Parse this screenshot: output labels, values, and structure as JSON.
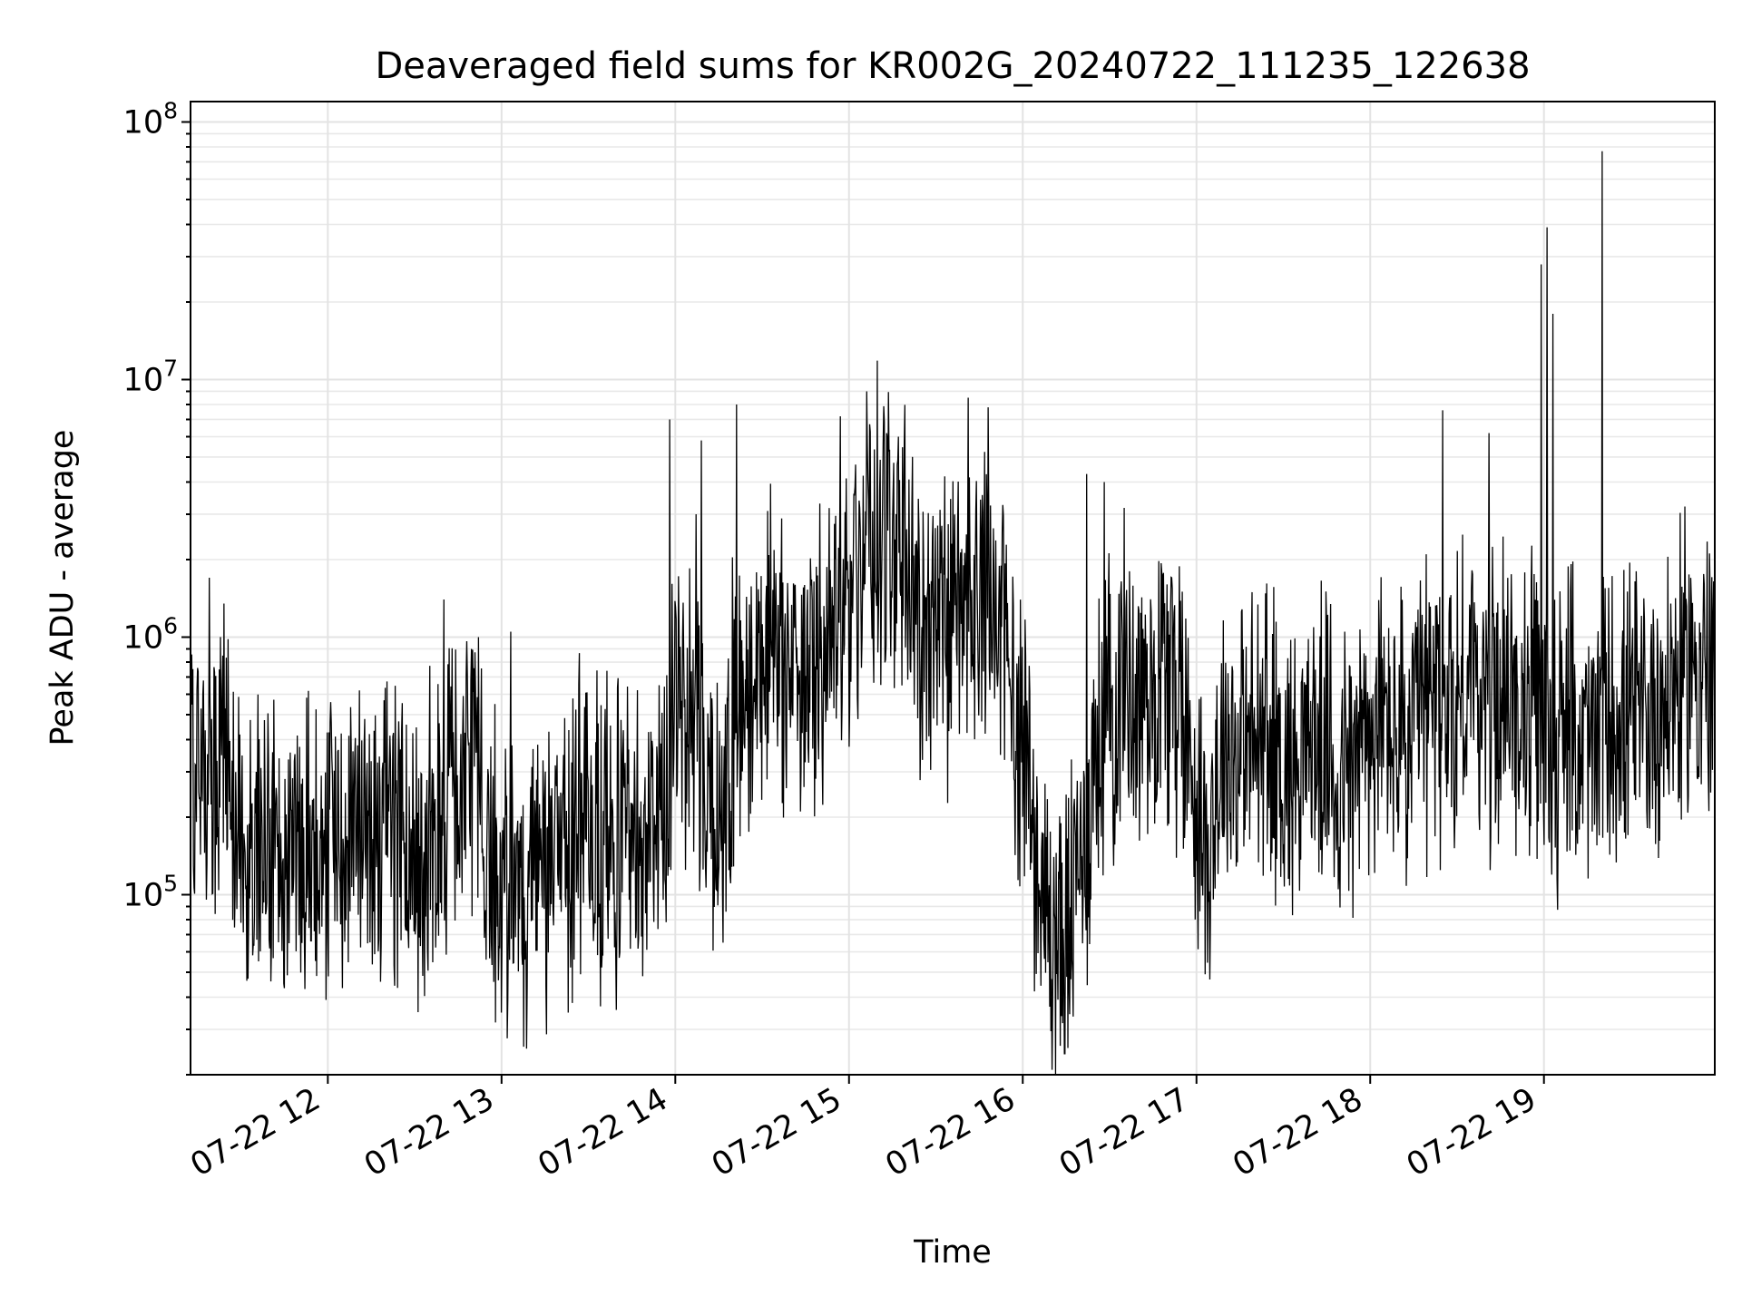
{
  "chart_data": {
    "type": "line",
    "title": "Deaveraged field sums for KR002G_20240722_111235_122638",
    "xlabel": "Time",
    "ylabel": "Peak ADU - average",
    "yscale": "log",
    "ylim": [
      20000,
      120000000
    ],
    "xlim": [
      "2024-07-22 11:12:35",
      "2024-07-22 19:59:00"
    ],
    "grid": "both major and minor",
    "line_color": "#000000",
    "x_ticks": [
      {
        "label": "07-22 12",
        "value": "2024-07-22 12:00"
      },
      {
        "label": "07-22 13",
        "value": "2024-07-22 13:00"
      },
      {
        "label": "07-22 14",
        "value": "2024-07-22 14:00"
      },
      {
        "label": "07-22 15",
        "value": "2024-07-22 15:00"
      },
      {
        "label": "07-22 16",
        "value": "2024-07-22 16:00"
      },
      {
        "label": "07-22 17",
        "value": "2024-07-22 17:00"
      },
      {
        "label": "07-22 18",
        "value": "2024-07-22 18:00"
      },
      {
        "label": "07-22 19",
        "value": "2024-07-22 19:00"
      }
    ],
    "y_ticks": [
      {
        "base": "10",
        "exp": "5",
        "value": 100000
      },
      {
        "base": "10",
        "exp": "6",
        "value": 1000000
      },
      {
        "base": "10",
        "exp": "7",
        "value": 10000000
      },
      {
        "base": "10",
        "exp": "8",
        "value": 100000000
      }
    ],
    "series": [
      {
        "x": [
          "2024-07-22 11:13",
          "2024-07-22 11:20",
          "2024-07-22 11:27",
          "2024-07-22 11:34",
          "2024-07-22 11:41",
          "2024-07-22 11:48",
          "2024-07-22 11:55",
          "2024-07-22 12:02",
          "2024-07-22 12:09",
          "2024-07-22 12:16",
          "2024-07-22 12:23",
          "2024-07-22 12:30",
          "2024-07-22 12:37",
          "2024-07-22 12:44",
          "2024-07-22 12:51",
          "2024-07-22 12:58",
          "2024-07-22 13:05",
          "2024-07-22 13:12",
          "2024-07-22 13:19",
          "2024-07-22 13:26",
          "2024-07-22 13:33",
          "2024-07-22 13:40",
          "2024-07-22 13:47",
          "2024-07-22 13:54",
          "2024-07-22 14:01",
          "2024-07-22 14:08",
          "2024-07-22 14:15",
          "2024-07-22 14:22",
          "2024-07-22 14:29",
          "2024-07-22 14:36",
          "2024-07-22 14:43",
          "2024-07-22 14:50",
          "2024-07-22 14:57",
          "2024-07-22 15:04",
          "2024-07-22 15:11",
          "2024-07-22 15:18",
          "2024-07-22 15:25",
          "2024-07-22 15:32",
          "2024-07-22 15:39",
          "2024-07-22 15:46",
          "2024-07-22 15:53",
          "2024-07-22 16:00",
          "2024-07-22 16:07",
          "2024-07-22 16:14",
          "2024-07-22 16:21",
          "2024-07-22 16:28",
          "2024-07-22 16:35",
          "2024-07-22 16:42",
          "2024-07-22 16:49",
          "2024-07-22 16:56",
          "2024-07-22 17:03",
          "2024-07-22 17:10",
          "2024-07-22 17:17",
          "2024-07-22 17:24",
          "2024-07-22 17:31",
          "2024-07-22 17:38",
          "2024-07-22 17:45",
          "2024-07-22 17:52",
          "2024-07-22 17:59",
          "2024-07-22 18:06",
          "2024-07-22 18:13",
          "2024-07-22 18:20",
          "2024-07-22 18:27",
          "2024-07-22 18:34",
          "2024-07-22 18:41",
          "2024-07-22 18:48",
          "2024-07-22 18:55",
          "2024-07-22 19:02",
          "2024-07-22 19:09",
          "2024-07-22 19:16",
          "2024-07-22 19:23",
          "2024-07-22 19:30",
          "2024-07-22 19:37",
          "2024-07-22 19:44",
          "2024-07-22 19:51",
          "2024-07-22 19:58"
        ],
        "y": [
          350000,
          300000,
          250000,
          200000,
          150000,
          160000,
          180000,
          170000,
          190000,
          170000,
          200000,
          150000,
          170000,
          240000,
          300000,
          120000,
          100000,
          110000,
          130000,
          180000,
          170000,
          160000,
          170000,
          180000,
          600000,
          500000,
          150000,
          700000,
          800000,
          900000,
          700000,
          800000,
          1000000,
          2000000,
          2500000,
          2000000,
          1200000,
          900000,
          1100000,
          1500000,
          1000000,
          400000,
          90000,
          60000,
          150000,
          500000,
          700000,
          600000,
          800000,
          500000,
          150000,
          400000,
          350000,
          450000,
          300000,
          400000,
          350000,
          300000,
          400000,
          450000,
          350000,
          550000,
          500000,
          700000,
          550000,
          600000,
          500000,
          400000,
          450000,
          350000,
          500000,
          450000,
          500000,
          600000,
          800000,
          700000
        ]
      }
    ],
    "spikes": [
      {
        "x": "2024-07-22 11:19",
        "y": 1700000
      },
      {
        "x": "2024-07-22 11:24",
        "y": 1350000
      },
      {
        "x": "2024-07-22 12:40",
        "y": 1400000
      },
      {
        "x": "2024-07-22 12:52",
        "y": 1000000
      },
      {
        "x": "2024-07-22 13:03",
        "y": 1050000
      },
      {
        "x": "2024-07-22 13:58",
        "y": 7000000
      },
      {
        "x": "2024-07-22 14:07",
        "y": 3000000
      },
      {
        "x": "2024-07-22 14:09",
        "y": 5800000
      },
      {
        "x": "2024-07-22 14:21",
        "y": 8000000
      },
      {
        "x": "2024-07-22 14:57",
        "y": 7200000
      },
      {
        "x": "2024-07-22 15:06",
        "y": 9000000
      },
      {
        "x": "2024-07-22 15:17",
        "y": 6000000
      },
      {
        "x": "2024-07-22 15:41",
        "y": 8500000
      },
      {
        "x": "2024-07-22 15:48",
        "y": 7800000
      },
      {
        "x": "2024-07-22 16:22",
        "y": 4300000
      },
      {
        "x": "2024-07-22 16:28",
        "y": 4000000
      },
      {
        "x": "2024-07-22 18:25",
        "y": 7600000
      },
      {
        "x": "2024-07-22 18:41",
        "y": 6200000
      },
      {
        "x": "2024-07-22 18:59",
        "y": 28000000
      },
      {
        "x": "2024-07-22 19:01",
        "y": 39000000
      },
      {
        "x": "2024-07-22 19:03",
        "y": 18000000
      },
      {
        "x": "2024-07-22 19:20",
        "y": 77000000
      }
    ]
  }
}
